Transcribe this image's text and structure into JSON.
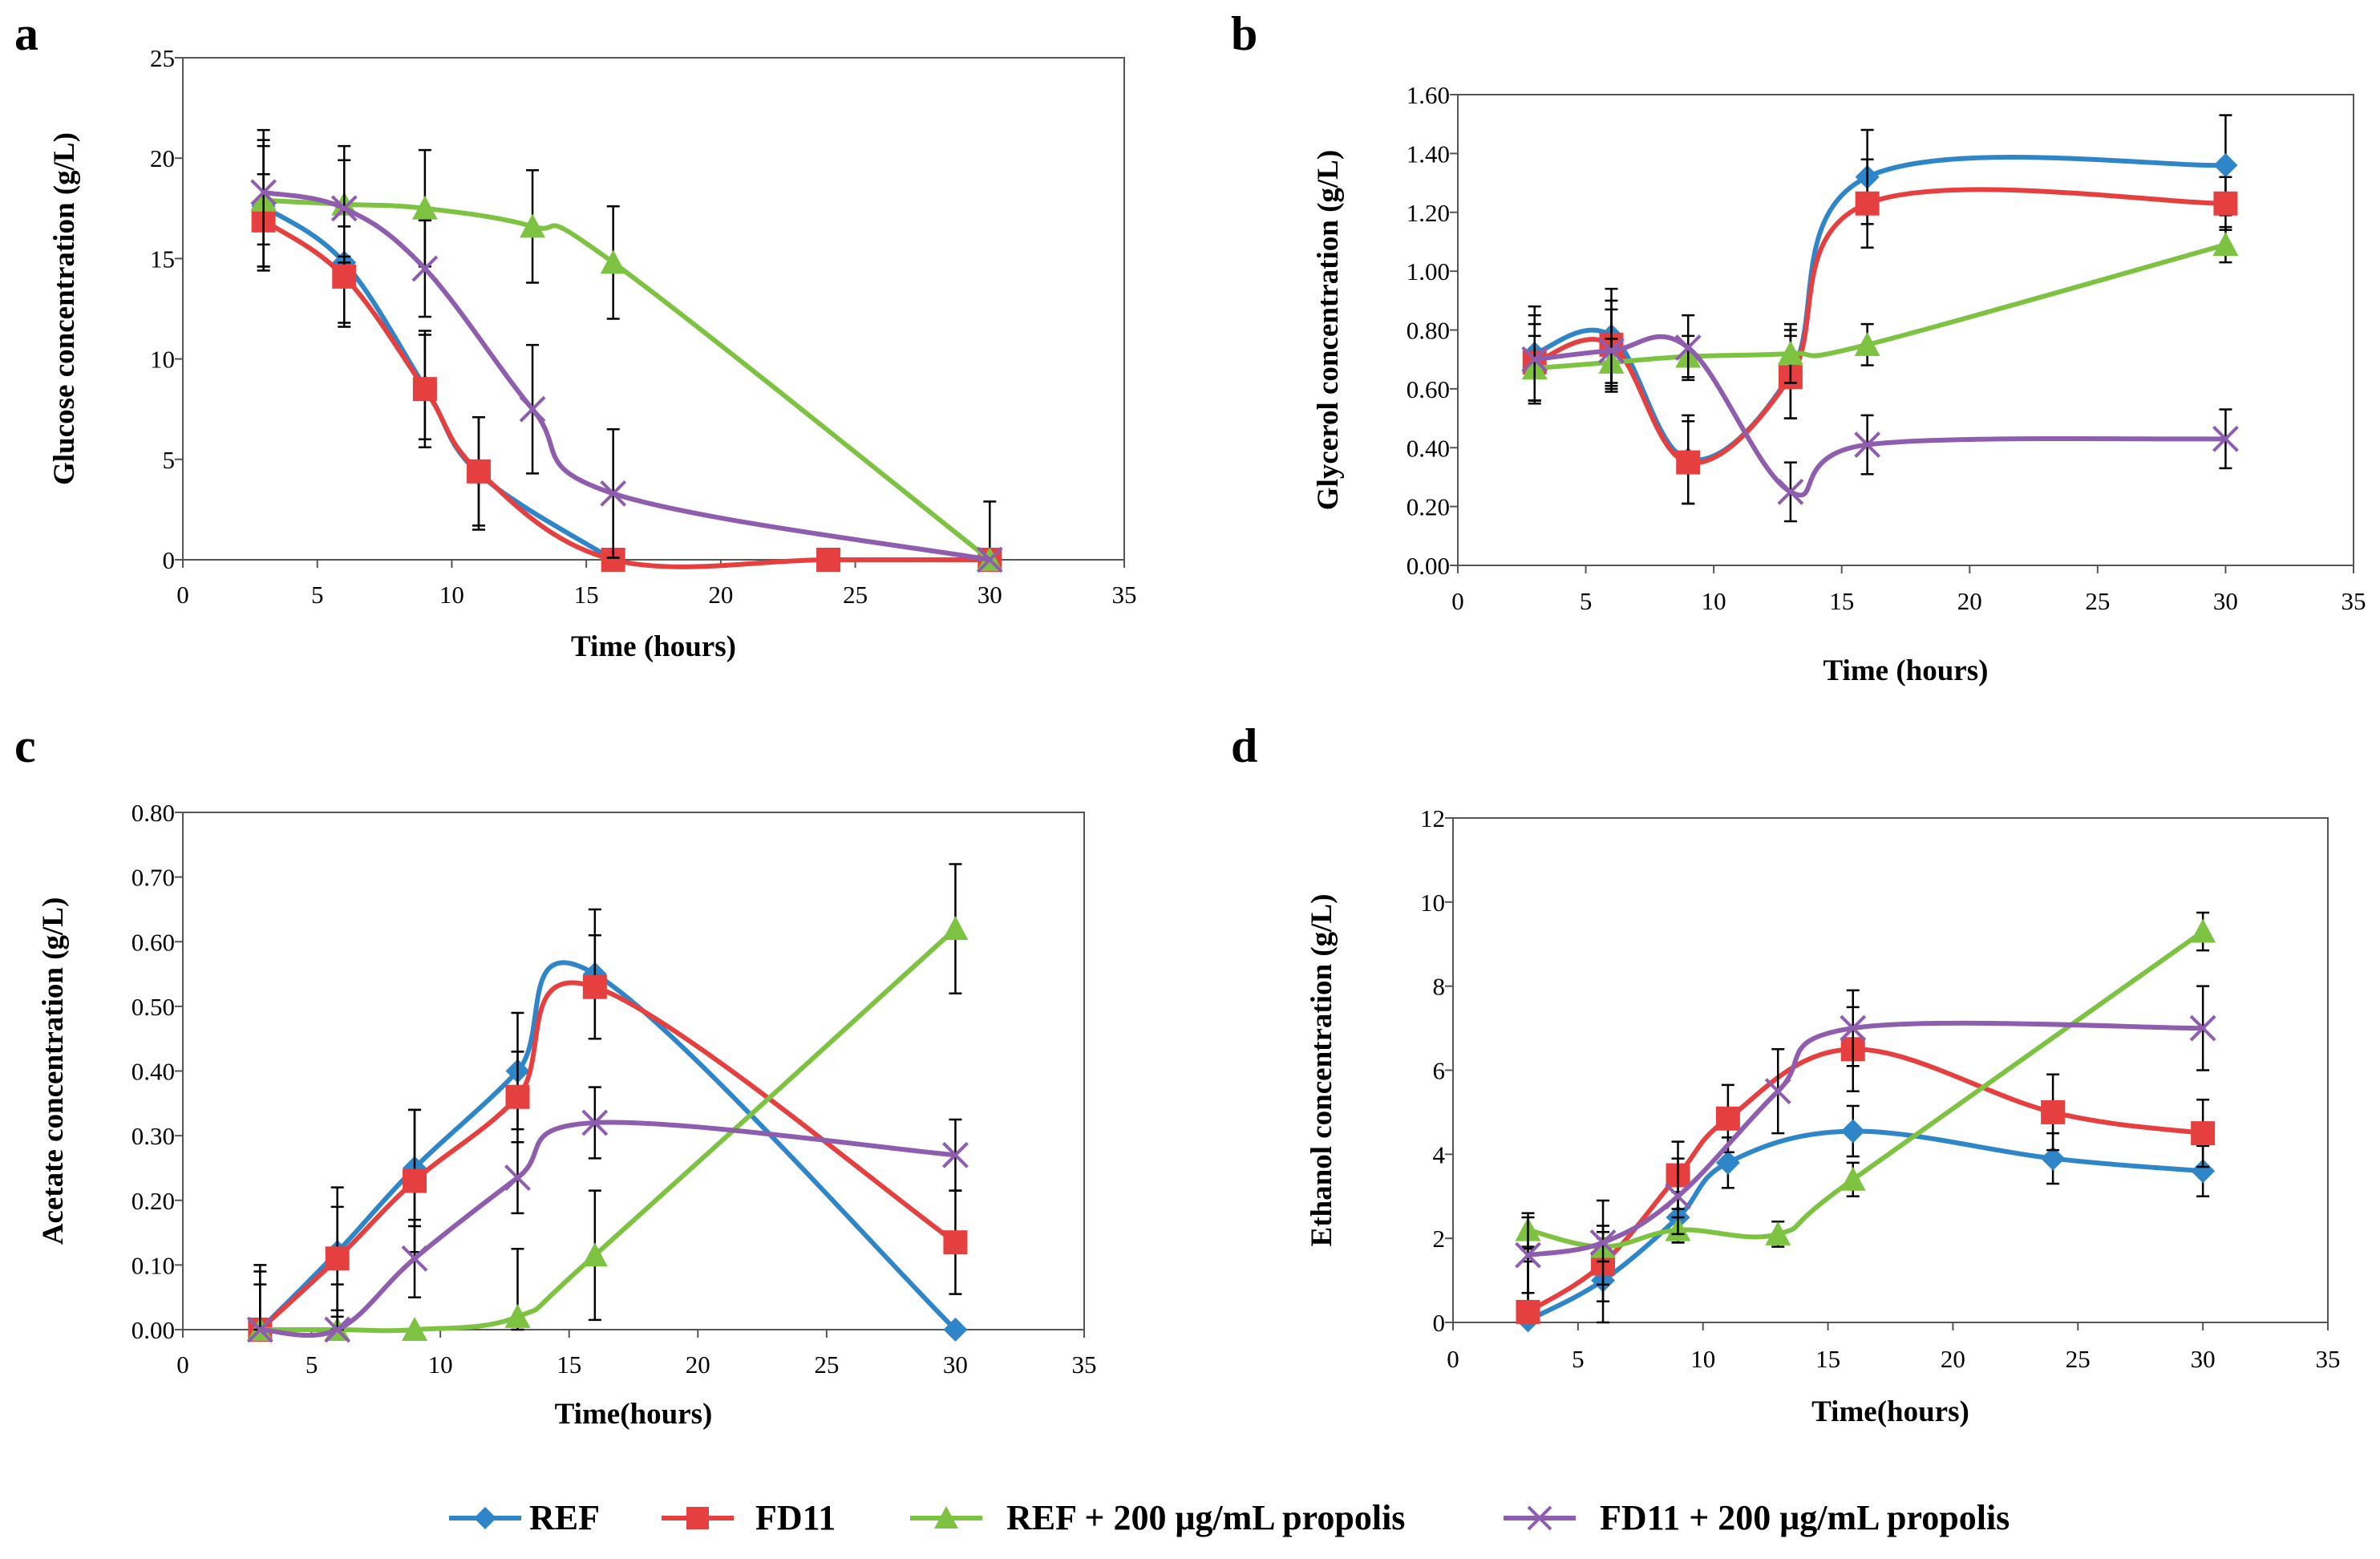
{
  "figure": {
    "legend": [
      {
        "key": "ref",
        "label": "REF",
        "color": "#2E86C8",
        "marker": "diamond"
      },
      {
        "key": "fd11",
        "label": "FD11",
        "color": "#E5403F",
        "marker": "square"
      },
      {
        "key": "ref_prop",
        "label": "REF + 200 μg/mL propolis",
        "color": "#7EC242",
        "marker": "triangle"
      },
      {
        "key": "fd11_prop",
        "label": "FD11 + 200 μg/mL propolis",
        "color": "#8F5DAE",
        "marker": "cross"
      }
    ]
  },
  "chart_data": [
    {
      "panel": "a",
      "type": "line",
      "xlabel": "Time (hours)",
      "ylabel": "Glucose concentration (g/L)",
      "xlim": [
        0,
        35
      ],
      "ylim": [
        0,
        25
      ],
      "xticks": [
        0,
        5,
        10,
        15,
        20,
        25,
        30,
        35
      ],
      "yticks": [
        0,
        5,
        10,
        15,
        20,
        25
      ],
      "ytick_labels": [
        "0",
        "5",
        "10",
        "15",
        "20",
        "25"
      ],
      "series": [
        {
          "name": "REF",
          "x": [
            3,
            6,
            9,
            11,
            16
          ],
          "y": [
            17.6,
            14.8,
            8.6,
            4.3,
            0.0
          ],
          "err": [
            3.0,
            3.0,
            2.6,
            2.8,
            0
          ]
        },
        {
          "name": "FD11",
          "x": [
            3,
            6,
            9,
            11,
            16,
            24,
            30
          ],
          "y": [
            16.9,
            14.1,
            8.5,
            4.4,
            0.0,
            0.0,
            0.0
          ],
          "err": [
            2.3,
            2.5,
            2.9,
            2.7,
            0,
            0,
            0
          ]
        },
        {
          "name": "REF + 200 μg/mL propolis",
          "x": [
            3,
            6,
            9,
            13,
            16,
            30
          ],
          "y": [
            17.9,
            17.7,
            17.5,
            16.6,
            14.8,
            0.0
          ],
          "err": [
            3.5,
            2.9,
            2.9,
            2.8,
            2.8,
            2.9
          ]
        },
        {
          "name": "FD11 + 200 μg/mL propolis",
          "x": [
            3,
            6,
            9,
            13,
            16,
            30
          ],
          "y": [
            18.3,
            17.5,
            14.5,
            7.5,
            3.3,
            0.0
          ],
          "err": [
            2.6,
            2.4,
            2.4,
            3.2,
            3.2,
            0
          ]
        }
      ]
    },
    {
      "panel": "b",
      "type": "line",
      "xlabel": "Time (hours)",
      "ylabel": "Glycerol concentration (g/L)",
      "xlim": [
        0,
        35
      ],
      "ylim": [
        0,
        1.6
      ],
      "xticks": [
        0,
        5,
        10,
        15,
        20,
        25,
        30,
        35
      ],
      "yticks": [
        0,
        0.2,
        0.4,
        0.6,
        0.8,
        1.0,
        1.2,
        1.4,
        1.6
      ],
      "ytick_labels": [
        "0.00",
        "0.20",
        "0.40",
        "0.60",
        "0.80",
        "1.00",
        "1.20",
        "1.40",
        "1.60"
      ],
      "series": [
        {
          "name": "REF",
          "x": [
            3,
            6,
            9,
            13,
            16,
            30
          ],
          "y": [
            0.72,
            0.78,
            0.36,
            0.65,
            1.32,
            1.36
          ],
          "err": [
            0.16,
            0.16,
            0.15,
            0.15,
            0.16,
            0.17
          ]
        },
        {
          "name": "FD11",
          "x": [
            3,
            6,
            9,
            13,
            16,
            30
          ],
          "y": [
            0.69,
            0.75,
            0.35,
            0.64,
            1.23,
            1.23
          ],
          "err": [
            0.13,
            0.15,
            0.14,
            0.14,
            0.15,
            0.09
          ]
        },
        {
          "name": "REF + 200 μg/mL propolis",
          "x": [
            3,
            6,
            9,
            13,
            16,
            30
          ],
          "y": [
            0.67,
            0.69,
            0.71,
            0.72,
            0.75,
            1.09
          ],
          "err": [
            0.11,
            0.08,
            0.07,
            0.1,
            0.07,
            0.06
          ]
        },
        {
          "name": "FD11 + 200 μg/mL propolis",
          "x": [
            3,
            6,
            9,
            13,
            16,
            30
          ],
          "y": [
            0.7,
            0.73,
            0.74,
            0.25,
            0.41,
            0.43
          ],
          "err": [
            0.15,
            0.14,
            0.11,
            0.1,
            0.1,
            0.1
          ]
        }
      ]
    },
    {
      "panel": "c",
      "type": "line",
      "xlabel": "Time(hours)",
      "ylabel": "Acetate concentration (g/L)",
      "xlim": [
        0,
        35
      ],
      "ylim": [
        0,
        0.8
      ],
      "xticks": [
        0,
        5,
        10,
        15,
        20,
        25,
        30,
        35
      ],
      "yticks": [
        0,
        0.1,
        0.2,
        0.3,
        0.4,
        0.5,
        0.6,
        0.7,
        0.8
      ],
      "ytick_labels": [
        "0.00",
        "0.10",
        "0.20",
        "0.30",
        "0.40",
        "0.50",
        "0.60",
        "0.70",
        "0.80"
      ],
      "series": [
        {
          "name": "REF",
          "x": [
            3,
            6,
            9,
            13,
            16,
            30
          ],
          "y": [
            0.0,
            0.12,
            0.25,
            0.4,
            0.55,
            0.0
          ],
          "err": [
            0.1,
            0.1,
            0.09,
            0.09,
            0.1,
            0
          ]
        },
        {
          "name": "FD11",
          "x": [
            3,
            6,
            9,
            13,
            16,
            30
          ],
          "y": [
            0.0,
            0.11,
            0.23,
            0.36,
            0.53,
            0.135
          ],
          "err": [
            0.09,
            0.08,
            0.11,
            0.07,
            0.08,
            0.08
          ]
        },
        {
          "name": "REF + 200 μg/mL propolis",
          "x": [
            3,
            6,
            9,
            13,
            16,
            30
          ],
          "y": [
            0.0,
            0.0,
            0.0,
            0.02,
            0.115,
            0.62
          ],
          "err": [
            0,
            0,
            0,
            0.105,
            0.1,
            0.1
          ]
        },
        {
          "name": "FD11 + 200 μg/mL propolis",
          "x": [
            3,
            6,
            9,
            13,
            16,
            30
          ],
          "y": [
            0.0,
            0.0,
            0.11,
            0.235,
            0.32,
            0.27
          ],
          "err": [
            0.07,
            0.07,
            0.06,
            0.055,
            0.055,
            0.055
          ]
        }
      ]
    },
    {
      "panel": "d",
      "type": "line",
      "xlabel": "Time(hours)",
      "ylabel": "Ethanol concentration (g/L)",
      "xlim": [
        0,
        35
      ],
      "ylim": [
        0,
        12
      ],
      "xticks": [
        0,
        5,
        10,
        15,
        20,
        25,
        30,
        35
      ],
      "yticks": [
        0,
        2,
        4,
        6,
        8,
        10,
        12
      ],
      "ytick_labels": [
        "0",
        "2",
        "4",
        "6",
        "8",
        "10",
        "12"
      ],
      "series": [
        {
          "name": "REF",
          "x": [
            3,
            6,
            9,
            11,
            16,
            24,
            30
          ],
          "y": [
            0.05,
            1.0,
            2.5,
            3.8,
            4.55,
            3.9,
            3.6
          ],
          "err": [
            1.4,
            1.0,
            0.6,
            0.6,
            0.6,
            0.6,
            0.6
          ]
        },
        {
          "name": "FD11",
          "x": [
            3,
            6,
            9,
            11,
            16,
            24,
            30
          ],
          "y": [
            0.25,
            1.4,
            3.5,
            4.85,
            6.5,
            5.0,
            4.5
          ],
          "err": [
            1.5,
            0.9,
            0.8,
            0.8,
            1.0,
            0.9,
            0.8
          ]
        },
        {
          "name": "REF + 200 μg/mL propolis",
          "x": [
            3,
            6,
            9,
            13,
            16,
            30
          ],
          "y": [
            2.2,
            1.8,
            2.2,
            2.1,
            3.4,
            9.3
          ],
          "err": [
            0.4,
            0.35,
            0.3,
            0.3,
            0.4,
            0.45
          ]
        },
        {
          "name": "FD11 + 200 μg/mL propolis",
          "x": [
            3,
            6,
            9,
            13,
            16,
            30
          ],
          "y": [
            1.6,
            1.9,
            3.0,
            5.5,
            7.0,
            7.0
          ],
          "err": [
            0.9,
            1.0,
            0.9,
            1.0,
            0.9,
            1.0
          ]
        }
      ]
    }
  ]
}
